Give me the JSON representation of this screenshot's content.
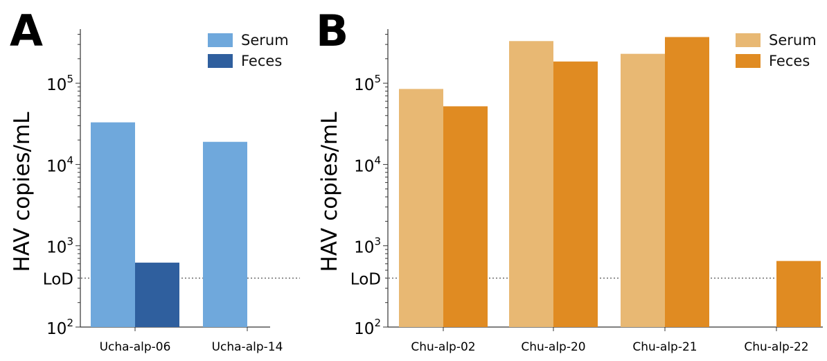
{
  "chart_data": [
    {
      "type": "bar",
      "panel": "A",
      "ylabel": "HAV copies/mL",
      "yscale": "log",
      "ylim": [
        100,
        500000
      ],
      "y_ticks": [
        100,
        1000,
        10000,
        100000
      ],
      "y_tick_labels": [
        {
          "base": "10",
          "exp": "2"
        },
        {
          "base": "10",
          "exp": "3"
        },
        {
          "base": "10",
          "exp": "4"
        },
        {
          "base": "10",
          "exp": "5"
        }
      ],
      "lod": {
        "label": "LoD",
        "value": 400
      },
      "categories": [
        "Ucha-alp-06",
        "Ucha-alp-14"
      ],
      "series": [
        {
          "name": "Serum",
          "color": "#6fa8dc",
          "values": [
            33000,
            19000
          ]
        },
        {
          "name": "Feces",
          "color": "#2f5f9e",
          "values": [
            620,
            null
          ]
        }
      ],
      "legend": "top-right"
    },
    {
      "type": "bar",
      "panel": "B",
      "ylabel": "HAV copies/mL",
      "yscale": "log",
      "ylim": [
        100,
        500000
      ],
      "y_ticks": [
        100,
        1000,
        10000,
        100000
      ],
      "y_tick_labels": [
        {
          "base": "10",
          "exp": "2"
        },
        {
          "base": "10",
          "exp": "3"
        },
        {
          "base": "10",
          "exp": "4"
        },
        {
          "base": "10",
          "exp": "5"
        }
      ],
      "lod": {
        "label": "LoD",
        "value": 400
      },
      "categories": [
        "Chu-alp-02",
        "Chu-alp-20",
        "Chu-alp-21",
        "Chu-alp-22"
      ],
      "series": [
        {
          "name": "Serum",
          "color": "#e8b873",
          "values": [
            85000,
            330000,
            230000,
            null
          ]
        },
        {
          "name": "Feces",
          "color": "#e08b22",
          "values": [
            52000,
            185000,
            370000,
            650
          ]
        }
      ],
      "legend": "top-right"
    }
  ]
}
